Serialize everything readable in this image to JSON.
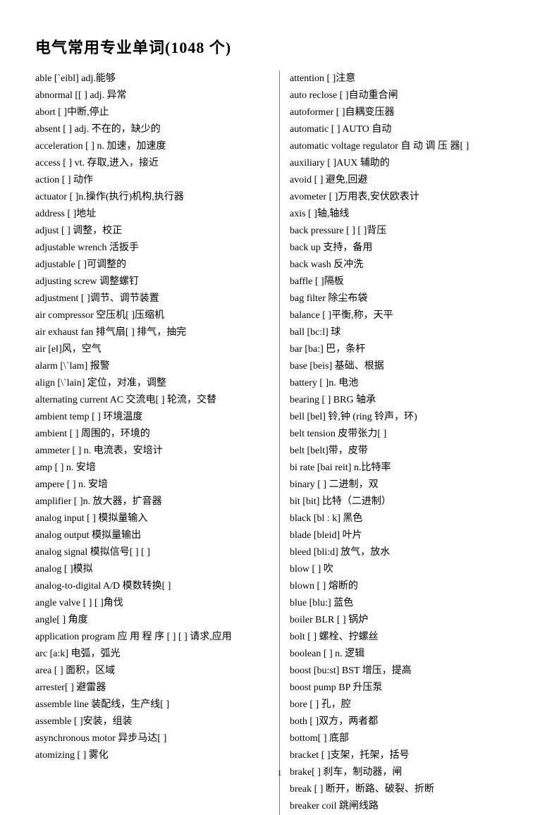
{
  "title": "电气常用专业单词(1048 个)",
  "page_number": "1",
  "left_column": [
    "able [`eibl] adj.能够",
    "abnormal [[            ] adj. 异常",
    "abort   [             ]中断,停止",
    "absent   [             ] adj.  不在的，缺少的",
    "acceleration   [              ] n.  加速，加速度",
    "access [            ] vt. 存取,进入，接近",
    "action   [             ]  动作",
    "actuator   [             ]n.操作(执行)机构,执行器",
    "address   [             ]地址",
    "adjust   [             ]   调整，校正",
    "adjustable wrench  活扳手",
    "adjustable   [             ]可调整的",
    "adjusting screw  调整螺钉",
    "adjustment   [              ]调节、调节装置",
    "air compressor 空压机[              ]压缩机",
    "air exhaust fan 排气扇[             ]  排气，抽完",
    "air [e‖]风，空气",
    "alarm   [\\`lam]  报警",
    "align   [\\`lain]  定位，对准，调整",
    "alternating current   AC  交流电[             ]  轮流，交替",
    "ambient temp   [              ]  环境温度",
    "ambient   [             ]  周围的，环境的",
    "ammeter   [             ] n.  电流表，安培计",
    "amp [       ] n.  安培",
    "ampere   [             ] n.  安培",
    "amplifier [             ]n.  放大器，扩音器",
    "analog input [             ]  模拟量输入",
    "analog output  模拟量输出",
    "analog signal  模拟信号[             ] [             ]",
    "analog   [             ]模拟",
    "analog-to-digital A/D  模数转换[             ]",
    "angle valve [             ] [             ]角伐",
    "angle[              ]  角度",
    "application  program   应 用 程 序 [              ] [             ]  请求,应用",
    "arc   [a:k]   电弧，弧光",
    "area   [             ]  面积，区域",
    "arrester[              ]  避雷器",
    "assemble line 装配线，生产线[              ]",
    "assemble [              ]安装，组装",
    "asynchronous motor  异步马达[              ]",
    "atomizing   [                  ]  雾化"
  ],
  "right_column": [
    "attention   [              ]注意",
    "auto reclose   [              ]自动重合闸",
    "autoformer   [              ]自耦变压器",
    "automatic   [              ] AUTO  自动",
    "automatic  voltage  regulator   自 动 调 压 器[             ]",
    "auxiliary   [              ]AUX 辅助的",
    "avoid   [             ]  避免,回避",
    "avometer   [              ]万用表,安伏欧表计",
    "axis   [             ]轴,轴线",
    "back pressure   [             ] [             ]背压",
    "back up  支持，备用",
    "back wash  反冲洗",
    "baffle   [             ]隔板",
    "bag filter 除尘布袋",
    "balance [              ]平衡,称，天平",
    "ball   [bc:l]  球",
    "bar   [ba:]  巴，条杆",
    "base [beis]  基础、根据",
    "battery [             ]n.  电池",
    "bearing   [             ] BRG   轴承",
    "bell   [bel]  铃,钟   (ring  铃声，环)",
    "belt tension  皮带张力[              ]",
    "belt   [belt]带，皮带",
    "bi rate   [bai reit] n.比特率",
    "binary   [             ]   二进制，双",
    "bit   [bit]  比特（二进制）",
    "black   [bl ː k]  黑色",
    "blade   [bleid]  叶片",
    "bleed   [bli:d]  放气，放水",
    "blow   [             ]  吹",
    "blown [             ]   熔断的",
    "blue [blu:]  蓝色",
    "boiler BLR   [             ]  锅炉",
    "bolt   [             ]  螺栓、拧螺丝",
    "boolean   [             ] n.  逻辑",
    "boost   [bu:st]   BST 增压，提高",
    "boost  pump   BP  升压泵",
    "bore   [             ] 孔，腔",
    "both   [             ]双方，两者都",
    "bottom[              ]  底部",
    "bracket   [             ]支架，托架，括号",
    "brake[              ] 刹车，制动器，闸",
    "break [              ]   断开，断路、破裂、折断",
    "breaker coil  跳闸线路"
  ]
}
